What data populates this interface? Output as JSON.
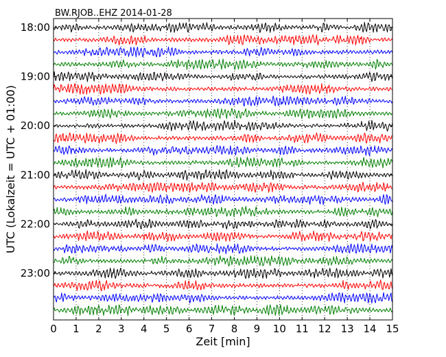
{
  "chart_data": {
    "type": "line",
    "title": "BW.RJOB..EHZ 2014-01-28",
    "xlabel": "Zeit  [min]",
    "ylabel": "UTC (Lokalzeit = UTC + 01:00)",
    "xlim": [
      0,
      15
    ],
    "x_ticks": [
      "0",
      "1",
      "2",
      "3",
      "4",
      "5",
      "6",
      "7",
      "8",
      "9",
      "10",
      "11",
      "12",
      "13",
      "14",
      "15"
    ],
    "y_tick_labels": [
      "18:00",
      "19:00",
      "20:00",
      "21:00",
      "22:00",
      "23:00"
    ],
    "rows_per_hour": 4,
    "minutes_per_row": 15,
    "grid": "vertical dotted lines at each minute",
    "trace_colors": [
      "#000000",
      "#ff0000",
      "#0000ff",
      "#007f00"
    ],
    "series_rows": [
      "18:00",
      "18:15",
      "18:30",
      "18:45",
      "19:00",
      "19:15",
      "19:30",
      "19:45",
      "20:00",
      "20:15",
      "20:30",
      "20:45",
      "21:00",
      "21:15",
      "21:30",
      "21:45",
      "22:00",
      "22:15",
      "22:30",
      "22:45",
      "23:00",
      "23:15",
      "23:30",
      "23:45"
    ]
  }
}
